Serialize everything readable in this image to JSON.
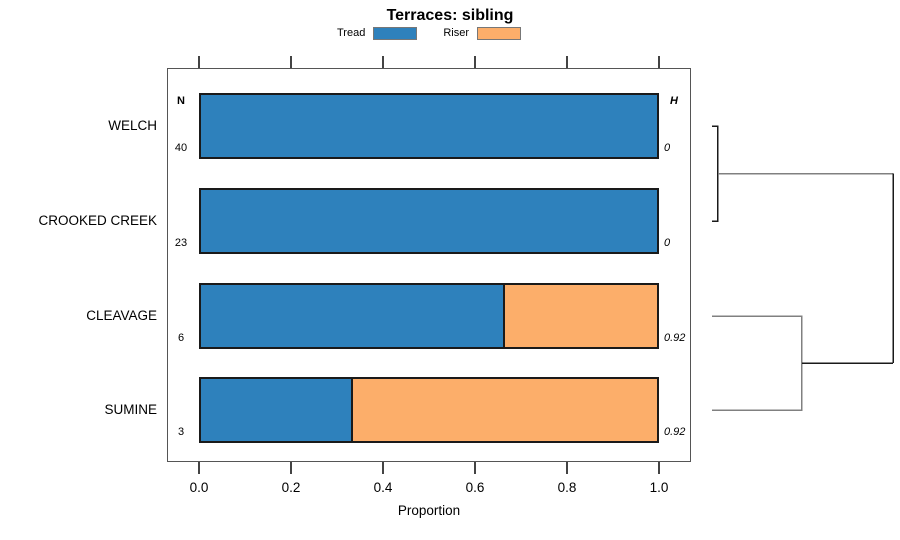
{
  "title": "Terraces: sibling",
  "legend": {
    "items": [
      {
        "label": "Tread",
        "color": "#2E81BC"
      },
      {
        "label": "Riser",
        "color": "#FCAE6A"
      }
    ]
  },
  "table_headers": {
    "n": "N",
    "h": "H"
  },
  "colors": {
    "tread": "#2E81BC",
    "riser": "#FCAE6A",
    "bar_border": "#1a1a1a",
    "plot_border": "#555555",
    "dendro_dark": "#1a1a1a",
    "dendro_gray": "#808080"
  },
  "chart_data": {
    "type": "bar",
    "orientation": "horizontal",
    "stacked": true,
    "title": "Terraces: sibling",
    "xlabel": "Proportion",
    "xlim": [
      0,
      1
    ],
    "x_ticks": [
      {
        "value": 0.0,
        "label": "0.0"
      },
      {
        "value": 0.2,
        "label": "0.2"
      },
      {
        "value": 0.4,
        "label": "0.4"
      },
      {
        "value": 0.6,
        "label": "0.6"
      },
      {
        "value": 0.8,
        "label": "0.8"
      },
      {
        "value": 1.0,
        "label": "1.0"
      }
    ],
    "categories": [
      "WELCH",
      "CROOKED CREEK",
      "CLEAVAGE",
      "SUMINE"
    ],
    "n_values": [
      40,
      23,
      6,
      3
    ],
    "h_values": [
      "0",
      "0",
      "0.92",
      "0.92"
    ],
    "series": [
      {
        "name": "Tread",
        "color": "#2E81BC",
        "values": [
          1.0,
          1.0,
          0.667,
          0.333
        ]
      },
      {
        "name": "Riser",
        "color": "#FCAE6A",
        "values": [
          0.0,
          0.0,
          0.333,
          0.667
        ]
      }
    ],
    "dendrogram": {
      "leaves": [
        "WELCH",
        "CROOKED CREEK",
        "CLEAVAGE",
        "SUMINE"
      ],
      "merges": [
        {
          "children": [
            0,
            1
          ],
          "height_frac": 0.033,
          "bracket_color": "#1a1a1a",
          "link_color": "#808080"
        },
        {
          "children": [
            2,
            3
          ],
          "height_frac": 0.497,
          "bracket_color": "#808080",
          "link_color": "#1a1a1a"
        },
        {
          "children": [
            "merge0",
            "merge1"
          ],
          "height_frac": 1.0,
          "color": "#1a1a1a"
        }
      ]
    }
  }
}
